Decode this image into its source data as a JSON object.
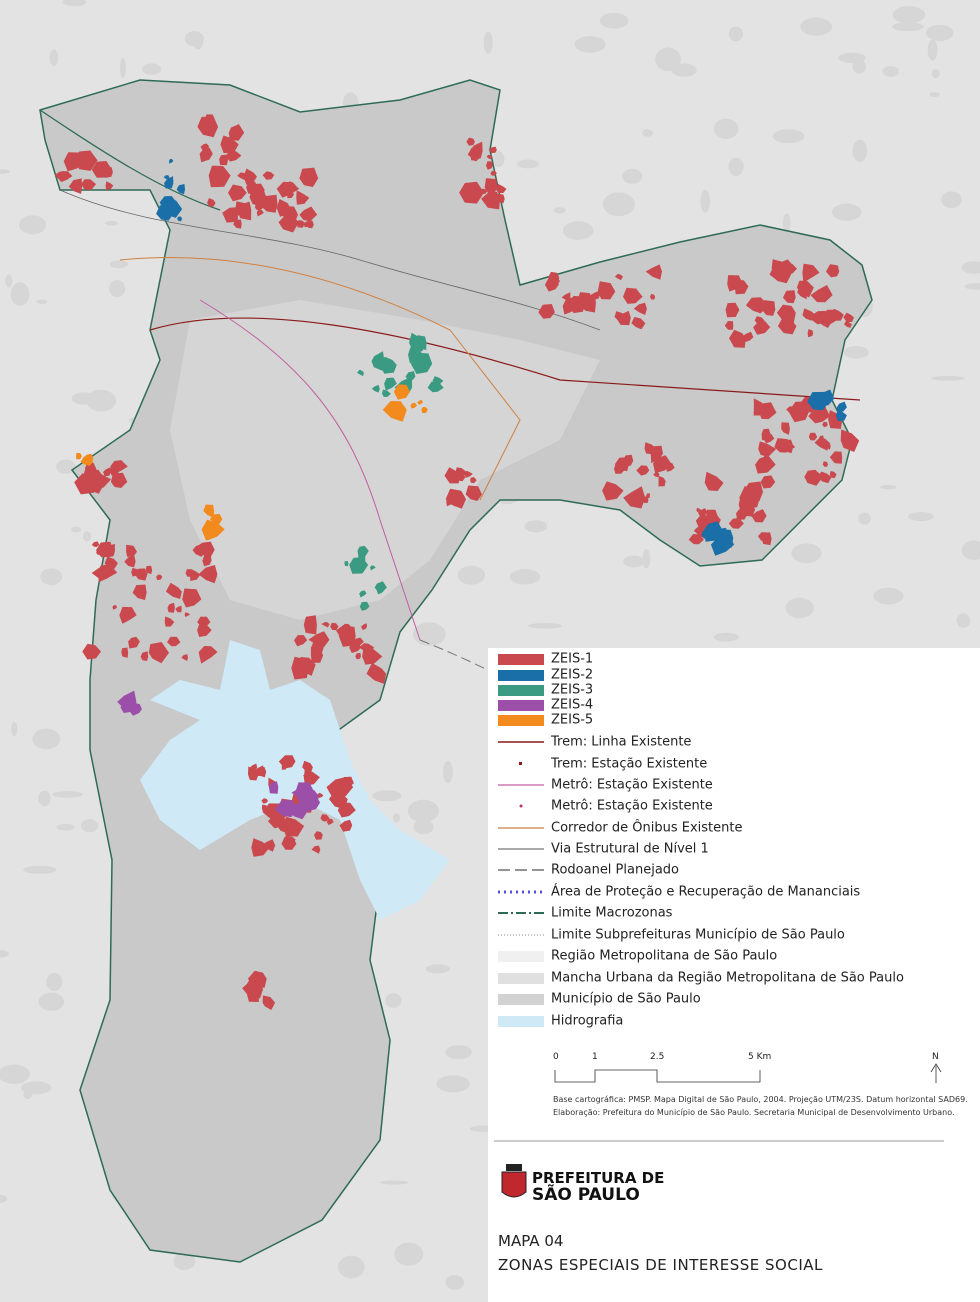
{
  "legend": {
    "items": [
      "ZEIS-1",
      "ZEIS-2",
      "ZEIS-3",
      "ZEIS-4",
      "ZEIS-5",
      "Trem: Linha Existente",
      "Trem: Estação Existente",
      "Metrô: Estação Existente",
      "Metrô: Estação Existente",
      "Corredor de Ônibus Existente",
      "Via Estrutural de Nível 1",
      "Rodoanel Planejado",
      "Área de Proteção e Recuperação de Mananciais",
      "Limite Macrozonas",
      "Limite Subprefeituras Município de São Paulo",
      "Região Metropolitana de São Paulo",
      "Mancha Urbana da Região Metropolitana de São Paulo",
      "Município de São Paulo",
      "Hidrografia"
    ]
  },
  "scale": {
    "labels": [
      "0",
      "1",
      "2.5",
      "5 Km"
    ],
    "north": "N"
  },
  "credits": [
    "Base cartográfica: PMSP. Mapa Digital de São Paulo, 2004. Projeção UTM/23S. Datum horizontal SAD69.",
    "Elaboração: Prefeitura do Município de São Paulo. Secretaria Municipal de Desenvolvimento Urbano."
  ],
  "logo": {
    "line1": "PREFEITURA DE",
    "line2": "SÃO PAULO"
  },
  "title": {
    "line1": "MAPA 04",
    "line2": "ZONAS ESPECIAIS DE INTERESSE SOCIAL"
  }
}
